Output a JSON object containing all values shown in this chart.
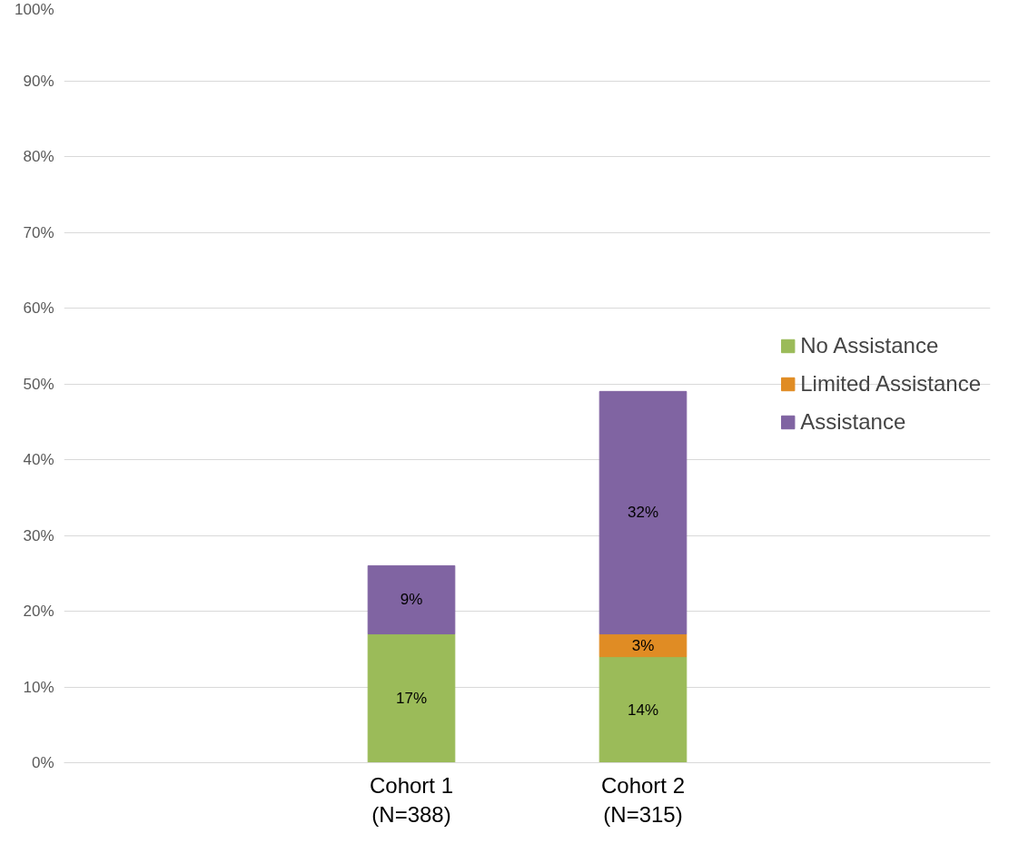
{
  "chart_data": {
    "type": "bar",
    "stacked": true,
    "categories": [
      null,
      "Cohort 1\n(N=388)",
      "Cohort 2\n(N=315)",
      null
    ],
    "series": [
      {
        "name": "No Assistance",
        "color": "#9bbb59",
        "values": [
          null,
          17,
          14,
          null
        ],
        "value_labels": [
          null,
          "17%",
          "14%",
          null
        ]
      },
      {
        "name": "Limited Assistance",
        "color": "#e08c24",
        "values": [
          null,
          null,
          3,
          null
        ],
        "value_labels": [
          null,
          null,
          "3%",
          null
        ]
      },
      {
        "name": "Assistance",
        "color": "#8064a2",
        "values": [
          null,
          9,
          32,
          null
        ],
        "value_labels": [
          null,
          "9%",
          "32%",
          null
        ]
      }
    ],
    "ylim": [
      0,
      100
    ],
    "yticks": [
      {
        "value": 0,
        "label": "0%"
      },
      {
        "value": 10,
        "label": "10%"
      },
      {
        "value": 20,
        "label": "20%"
      },
      {
        "value": 30,
        "label": "30%"
      },
      {
        "value": 40,
        "label": "40%"
      },
      {
        "value": 50,
        "label": "50%"
      },
      {
        "value": 60,
        "label": "60%"
      },
      {
        "value": 70,
        "label": "70%"
      },
      {
        "value": 80,
        "label": "80%"
      },
      {
        "value": 90,
        "label": "90%"
      },
      {
        "value": 100,
        "label": "100%"
      }
    ],
    "grid": "y",
    "legend": "right"
  }
}
